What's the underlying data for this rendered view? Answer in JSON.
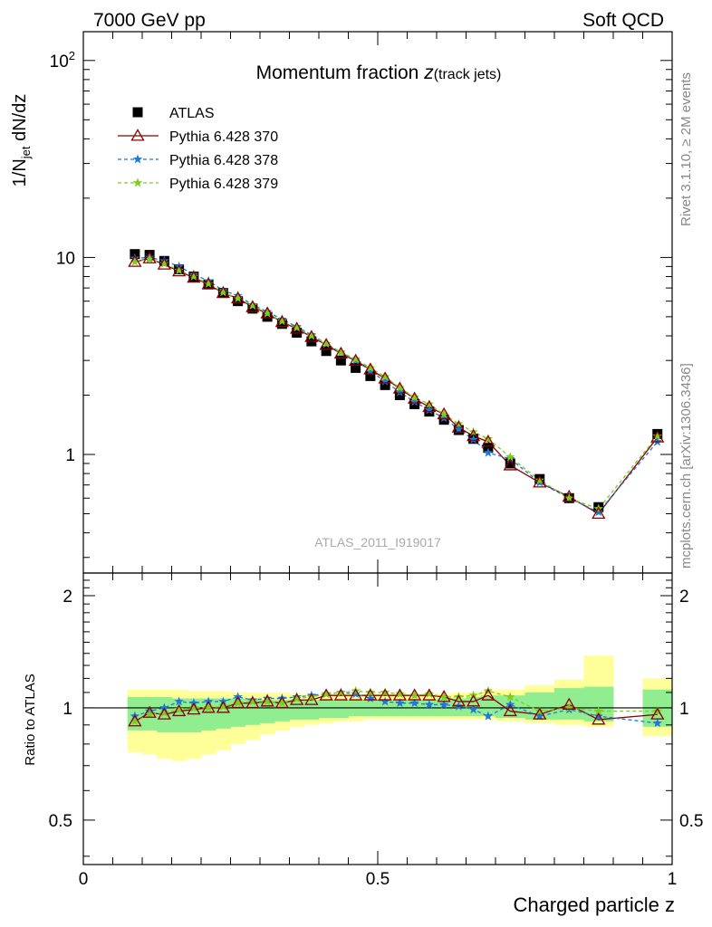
{
  "header": {
    "left": "7000 GeV pp",
    "right": "Soft QCD"
  },
  "side_labels": {
    "rivet": "Rivet 3.1.10, ≥ 2M events",
    "mcplots": "mcplots.cern.ch [arXiv:1306.3436]"
  },
  "colors": {
    "atlas": "#000000",
    "p370": "#8b0000",
    "p378": "#1e78dc",
    "p379": "#7fcc1a",
    "band_inner": "#90ee90",
    "band_outer": "#ffff99"
  },
  "chart_data": [
    {
      "type": "line",
      "title_main": "Momentum fraction ",
      "title_z": "z",
      "title_sub": "(track jets)",
      "xlabel": "Charged particle z",
      "ylabel_pre": "1/N",
      "ylabel_sub": "jet",
      "ylabel_post": " dN/dz",
      "yscale": "log",
      "xlim": [
        0,
        1
      ],
      "ylim": [
        0.25,
        140
      ],
      "x_ticks": [
        "0",
        "0.5",
        "1"
      ],
      "y_ticks": [
        "1",
        "10",
        "10^2"
      ],
      "watermark": "ATLAS_2011_I919017",
      "x": [
        0.0875,
        0.1125,
        0.1375,
        0.1625,
        0.1875,
        0.2125,
        0.2375,
        0.2625,
        0.2875,
        0.3125,
        0.3375,
        0.3625,
        0.3875,
        0.4125,
        0.4375,
        0.4625,
        0.4875,
        0.5125,
        0.5375,
        0.5625,
        0.5875,
        0.6125,
        0.6375,
        0.6625,
        0.6875,
        0.725,
        0.775,
        0.825,
        0.875,
        0.975
      ],
      "series": [
        {
          "name": "ATLAS",
          "marker": "square",
          "values": [
            10.4,
            10.3,
            9.6,
            8.7,
            8.0,
            7.3,
            6.6,
            6.0,
            5.5,
            5.0,
            4.6,
            4.15,
            3.75,
            3.35,
            3.0,
            2.75,
            2.5,
            2.25,
            2.0,
            1.8,
            1.65,
            1.5,
            1.33,
            1.2,
            1.08,
            0.9,
            0.75,
            0.6,
            0.54,
            1.27
          ]
        },
        {
          "name": "Pythia 6.428 370",
          "marker": "triangle",
          "values": [
            9.5,
            9.9,
            9.2,
            8.5,
            7.9,
            7.3,
            6.6,
            6.2,
            5.6,
            5.2,
            4.7,
            4.35,
            3.95,
            3.6,
            3.25,
            2.99,
            2.7,
            2.43,
            2.16,
            1.92,
            1.74,
            1.6,
            1.37,
            1.24,
            1.16,
            0.88,
            0.72,
            0.61,
            0.5,
            1.22
          ]
        },
        {
          "name": "Pythia 6.428 378",
          "marker": "star",
          "values": [
            9.9,
            10.0,
            9.6,
            9.0,
            8.2,
            7.6,
            6.8,
            6.4,
            5.75,
            5.3,
            4.85,
            4.45,
            4.05,
            3.65,
            3.3,
            3.0,
            2.65,
            2.35,
            2.07,
            1.85,
            1.68,
            1.53,
            1.34,
            1.19,
            1.02,
            0.95,
            0.72,
            0.6,
            0.51,
            1.16
          ]
        },
        {
          "name": "Pythia 6.428 379",
          "marker": "star",
          "values": [
            9.5,
            9.8,
            9.3,
            8.6,
            8.0,
            7.35,
            6.65,
            6.2,
            5.7,
            5.2,
            4.75,
            4.4,
            4.0,
            3.65,
            3.3,
            3.05,
            2.75,
            2.48,
            2.18,
            1.95,
            1.8,
            1.6,
            1.43,
            1.3,
            1.2,
            0.97,
            0.74,
            0.6,
            0.53,
            1.24
          ]
        }
      ]
    },
    {
      "type": "line",
      "ylabel": "Ratio to ATLAS",
      "xlim": [
        0,
        1
      ],
      "ylim": [
        0.38,
        2.3
      ],
      "yscale": "log",
      "y_ticks": [
        "0.5",
        "1",
        "2"
      ],
      "reference": 1,
      "bin_edges": [
        0.075,
        0.1,
        0.125,
        0.15,
        0.175,
        0.2,
        0.225,
        0.25,
        0.275,
        0.3,
        0.325,
        0.35,
        0.375,
        0.4,
        0.425,
        0.45,
        0.475,
        0.5,
        0.525,
        0.55,
        0.575,
        0.6,
        0.625,
        0.65,
        0.675,
        0.7,
        0.75,
        0.8,
        0.85,
        0.9,
        0.95,
        1.0
      ],
      "band_inner": {
        "low": [
          0.87,
          0.87,
          0.86,
          0.86,
          0.86,
          0.87,
          0.88,
          0.89,
          0.9,
          0.91,
          0.92,
          0.93,
          0.93,
          0.94,
          0.94,
          0.95,
          0.95,
          0.95,
          0.95,
          0.95,
          0.95,
          0.95,
          0.95,
          0.95,
          0.95,
          0.94,
          0.93,
          0.93,
          0.92,
          null,
          0.89
        ],
        "high": [
          1.07,
          1.07,
          1.07,
          1.06,
          1.06,
          1.06,
          1.06,
          1.06,
          1.06,
          1.05,
          1.05,
          1.05,
          1.05,
          1.05,
          1.05,
          1.05,
          1.05,
          1.05,
          1.05,
          1.05,
          1.05,
          1.06,
          1.06,
          1.07,
          1.08,
          1.08,
          1.1,
          1.13,
          1.14,
          null,
          1.12
        ]
      },
      "band_outer": {
        "low": [
          0.76,
          0.75,
          0.73,
          0.72,
          0.73,
          0.75,
          0.77,
          0.8,
          0.82,
          0.85,
          0.87,
          0.89,
          0.9,
          0.91,
          0.92,
          0.92,
          0.93,
          0.93,
          0.93,
          0.93,
          0.93,
          0.93,
          0.93,
          0.93,
          0.93,
          0.92,
          0.91,
          0.9,
          0.89,
          null,
          0.84
        ],
        "high": [
          1.12,
          1.12,
          1.12,
          1.12,
          1.11,
          1.11,
          1.11,
          1.1,
          1.1,
          1.1,
          1.1,
          1.09,
          1.09,
          1.09,
          1.09,
          1.09,
          1.09,
          1.09,
          1.09,
          1.09,
          1.09,
          1.09,
          1.1,
          1.1,
          1.11,
          1.12,
          1.15,
          1.19,
          1.38,
          null,
          1.2
        ]
      },
      "series": [
        {
          "name": "Pythia 6.428 370",
          "values": [
            0.92,
            0.97,
            0.96,
            0.98,
            0.99,
            1.0,
            1.0,
            1.03,
            1.03,
            1.04,
            1.03,
            1.05,
            1.05,
            1.08,
            1.08,
            1.08,
            1.08,
            1.08,
            1.08,
            1.08,
            1.08,
            1.07,
            1.04,
            1.04,
            1.08,
            0.98,
            0.96,
            1.02,
            0.93,
            0.96
          ]
        },
        {
          "name": "Pythia 6.428 378",
          "values": [
            0.95,
            0.98,
            1.0,
            1.04,
            1.03,
            1.04,
            1.04,
            1.07,
            1.05,
            1.06,
            1.06,
            1.07,
            1.08,
            1.09,
            1.1,
            1.09,
            1.06,
            1.04,
            1.03,
            1.03,
            1.02,
            1.02,
            1.01,
            0.99,
            0.95,
            1.02,
            0.95,
            0.99,
            0.95,
            0.91
          ]
        },
        {
          "name": "Pythia 6.428 379",
          "values": [
            0.92,
            0.96,
            0.97,
            0.99,
            1.0,
            1.0,
            1.01,
            1.03,
            1.04,
            1.04,
            1.03,
            1.06,
            1.07,
            1.09,
            1.1,
            1.11,
            1.1,
            1.1,
            1.09,
            1.08,
            1.09,
            1.07,
            1.07,
            1.08,
            1.11,
            1.07,
            0.98,
            1.0,
            0.98,
            0.98
          ]
        }
      ]
    }
  ]
}
